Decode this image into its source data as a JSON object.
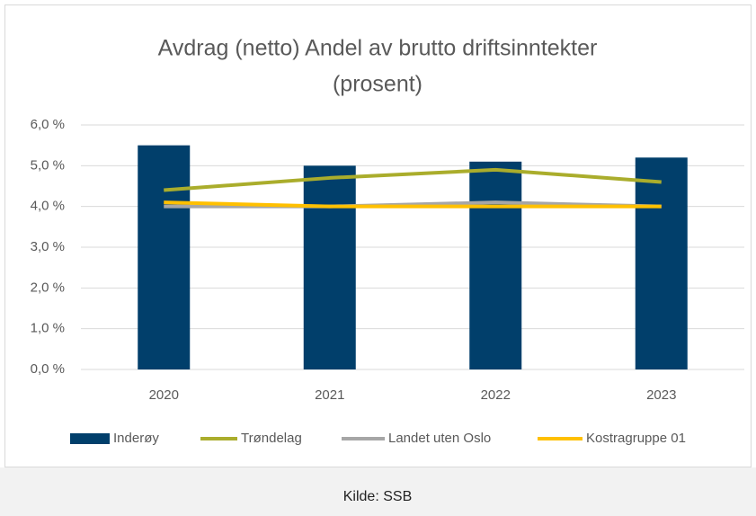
{
  "chart_data": {
    "type": "bar",
    "title": [
      "Avdrag (netto) Andel av brutto driftsinntekter",
      "(prosent)"
    ],
    "categories": [
      "2020",
      "2021",
      "2022",
      "2023"
    ],
    "series": [
      {
        "name": "Inderøy",
        "type": "bar",
        "color": "#013f6b",
        "values": [
          5.5,
          5.0,
          5.1,
          5.2
        ]
      },
      {
        "name": "Trøndelag",
        "type": "line",
        "color": "#aaad2c",
        "values": [
          4.4,
          4.7,
          4.9,
          4.6
        ]
      },
      {
        "name": "Landet uten Oslo",
        "type": "line",
        "color": "#a6a6a6",
        "values": [
          4.0,
          4.0,
          4.1,
          4.0
        ]
      },
      {
        "name": "Kostragruppe 01",
        "type": "line",
        "color": "#ffc000",
        "values": [
          4.1,
          4.0,
          4.0,
          4.0
        ]
      }
    ],
    "ylim": [
      0,
      6
    ],
    "yticks": [
      {
        "value": 0,
        "label": "0,0 %"
      },
      {
        "value": 1,
        "label": "1,0 %"
      },
      {
        "value": 2,
        "label": "2,0 %"
      },
      {
        "value": 3,
        "label": "3,0 %"
      },
      {
        "value": 4,
        "label": "4,0 %"
      },
      {
        "value": 5,
        "label": "5,0 %"
      },
      {
        "value": 6,
        "label": "6,0 %"
      }
    ],
    "grid": true,
    "legend": "bottom"
  },
  "caption": "Kilde: SSB"
}
